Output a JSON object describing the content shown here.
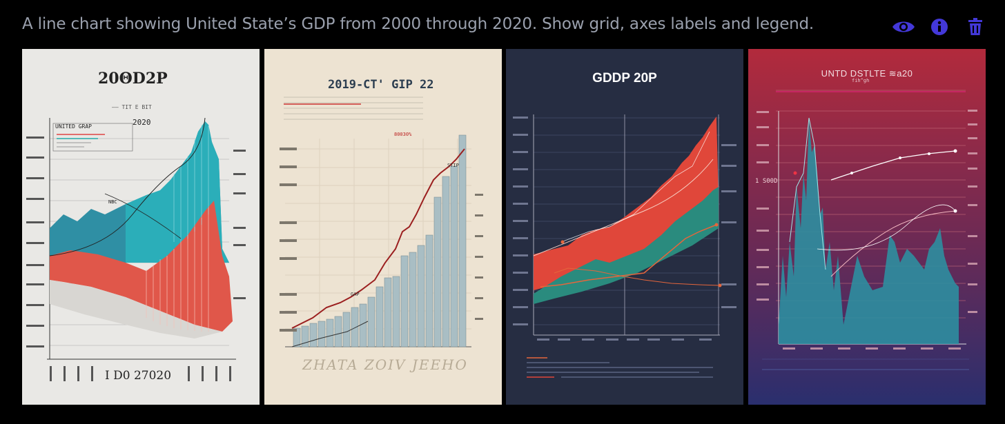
{
  "prompt": {
    "text": "A line chart showing United State’s GDP from 2000 through 2020.   Show grid, axes labels and legend."
  },
  "actions": {
    "view_icon": "eye-icon",
    "info_icon": "info-icon",
    "delete_icon": "trash-icon",
    "accent": "#4338d8"
  },
  "images": [
    {
      "title": "20ΘD2P",
      "subtitle": "—— TIT E BIT",
      "legend_label": "UNITED GRAP",
      "year_label": "2020",
      "marker_label": "NBC",
      "footer": "I D0 27020",
      "bg": "#e9e8e5"
    },
    {
      "title": "2019-CT' GIP 22",
      "annotation": "80030%",
      "mid_label": "STIP",
      "low_label": "GAP",
      "footer_scribble": "ZHATA ZOIV JEEHO",
      "bg": "#ede3d2"
    },
    {
      "title": "GDDP 20P",
      "bg": "#262d42"
    },
    {
      "title": "UNTD DSTLTE ≋a20",
      "subtitle": "fih^gh",
      "left_label": "1 S00D",
      "bg_top": "#b22a3c",
      "bg_bottom": "#2a2f6e"
    }
  ]
}
